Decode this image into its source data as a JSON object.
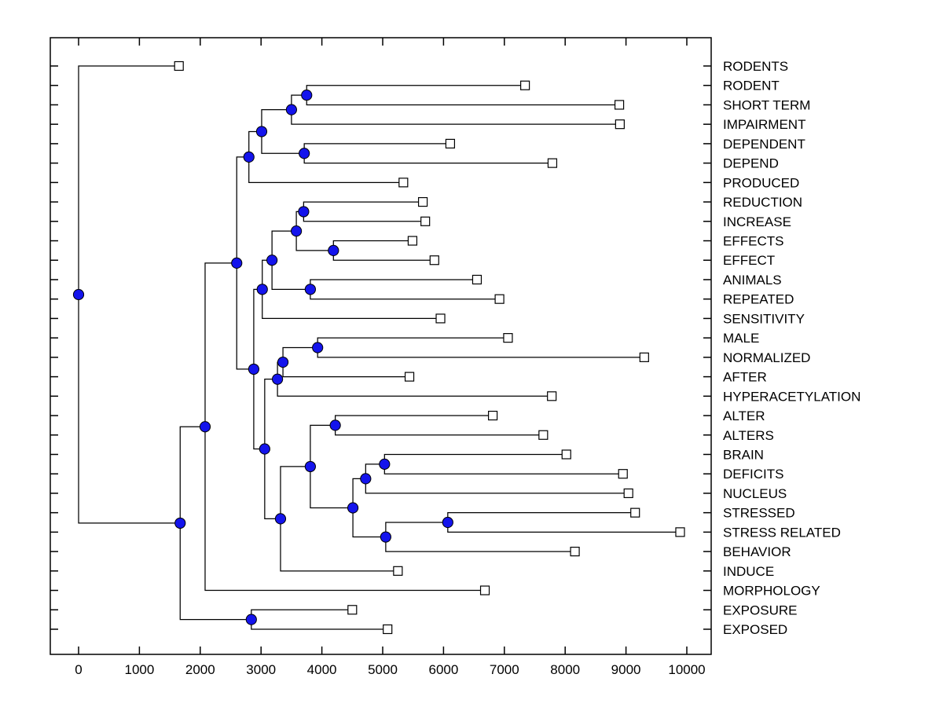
{
  "chart_data": {
    "type": "dendrogram",
    "subtype": "phylogenetic-tree-left-to-right",
    "title": "",
    "xlabel": "",
    "ylabel": "",
    "grid": false,
    "legend": null,
    "x_axis": {
      "min": 0,
      "max": 10000,
      "tick_step": 1000,
      "tick_labels": [
        "0",
        "1000",
        "2000",
        "3000",
        "4000",
        "5000",
        "6000",
        "7000",
        "8000",
        "9000",
        "10000"
      ]
    },
    "marker_styles": {
      "internal_node": "filled blue circle",
      "leaf_node": "open white square"
    },
    "colors": {
      "branch_line": "#000000",
      "internal_node_fill": "#1414EC",
      "internal_node_edge": "#000000",
      "leaf_marker_fill": "#FFFFFF",
      "leaf_marker_edge": "#000000",
      "axis_box": "#000000"
    },
    "leaf_order": [
      "RODENTS",
      "RODENT",
      "SHORT TERM",
      "IMPAIRMENT",
      "DEPENDENT",
      "DEPEND",
      "PRODUCED",
      "REDUCTION",
      "INCREASE",
      "EFFECTS",
      "EFFECT",
      "ANIMALS",
      "REPEATED",
      "SENSITIVITY",
      "MALE",
      "NORMALIZED",
      "AFTER",
      "HYPERACETYLATION",
      "ALTER",
      "ALTERS",
      "BRAIN",
      "DEFICITS",
      "NUCLEUS",
      "STRESSED",
      "STRESS RELATED",
      "BEHAVIOR",
      "INDUCE",
      "MORPHOLOGY",
      "EXPOSURE",
      "EXPOSED"
    ],
    "leaf_values": [
      1650,
      7340,
      8890,
      8900,
      6110,
      7790,
      5340,
      5660,
      5700,
      5490,
      5850,
      6550,
      6920,
      5950,
      7060,
      9300,
      5440,
      7780,
      6810,
      7640,
      8020,
      8950,
      9040,
      9150,
      9890,
      8160,
      5250,
      6680,
      4500,
      5080
    ],
    "tree": {
      "v": 0,
      "c": [
        {
          "leaf": "RODENTS",
          "v": 1650
        },
        {
          "v": 1670,
          "c": [
            {
              "v": 2080,
              "c": [
                {
                  "v": 2600,
                  "c": [
                    {
                      "v": 2800,
                      "c": [
                        {
                          "v": 3010,
                          "c": [
                            {
                              "v": 3500,
                              "c": [
                                {
                                  "v": 3750,
                                  "c": [
                                    {
                                      "leaf": "RODENT",
                                      "v": 7340
                                    },
                                    {
                                      "leaf": "SHORT TERM",
                                      "v": 8890
                                    }
                                  ]
                                },
                                {
                                  "leaf": "IMPAIRMENT",
                                  "v": 8900
                                }
                              ]
                            },
                            {
                              "v": 3710,
                              "c": [
                                {
                                  "leaf": "DEPENDENT",
                                  "v": 6110
                                },
                                {
                                  "leaf": "DEPEND",
                                  "v": 7790
                                }
                              ]
                            }
                          ]
                        },
                        {
                          "leaf": "PRODUCED",
                          "v": 5340
                        }
                      ]
                    },
                    {
                      "v": 2880,
                      "c": [
                        {
                          "v": 3020,
                          "c": [
                            {
                              "v": 3180,
                              "c": [
                                {
                                  "v": 3580,
                                  "c": [
                                    {
                                      "v": 3700,
                                      "c": [
                                        {
                                          "leaf": "REDUCTION",
                                          "v": 5660
                                        },
                                        {
                                          "leaf": "INCREASE",
                                          "v": 5700
                                        }
                                      ]
                                    },
                                    {
                                      "v": 4190,
                                      "c": [
                                        {
                                          "leaf": "EFFECTS",
                                          "v": 5490
                                        },
                                        {
                                          "leaf": "EFFECT",
                                          "v": 5850
                                        }
                                      ]
                                    }
                                  ]
                                },
                                {
                                  "v": 3810,
                                  "c": [
                                    {
                                      "leaf": "ANIMALS",
                                      "v": 6550
                                    },
                                    {
                                      "leaf": "REPEATED",
                                      "v": 6920
                                    }
                                  ]
                                }
                              ]
                            },
                            {
                              "leaf": "SENSITIVITY",
                              "v": 5950
                            }
                          ]
                        },
                        {
                          "v": 3060,
                          "c": [
                            {
                              "v": 3270,
                              "c": [
                                {
                                  "v": 3360,
                                  "c": [
                                    {
                                      "v": 3930,
                                      "c": [
                                        {
                                          "leaf": "MALE",
                                          "v": 7060
                                        },
                                        {
                                          "leaf": "NORMALIZED",
                                          "v": 9300
                                        }
                                      ]
                                    },
                                    {
                                      "leaf": "AFTER",
                                      "v": 5440
                                    }
                                  ]
                                },
                                {
                                  "leaf": "HYPERACETYLATION",
                                  "v": 7780
                                }
                              ]
                            },
                            {
                              "v": 3320,
                              "c": [
                                {
                                  "v": 3810,
                                  "c": [
                                    {
                                      "v": 4220,
                                      "c": [
                                        {
                                          "leaf": "ALTER",
                                          "v": 6810
                                        },
                                        {
                                          "leaf": "ALTERS",
                                          "v": 7640
                                        }
                                      ]
                                    },
                                    {
                                      "v": 4510,
                                      "c": [
                                        {
                                          "v": 4720,
                                          "c": [
                                            {
                                              "v": 5030,
                                              "c": [
                                                {
                                                  "leaf": "BRAIN",
                                                  "v": 8020
                                                },
                                                {
                                                  "leaf": "DEFICITS",
                                                  "v": 8950
                                                }
                                              ]
                                            },
                                            {
                                              "leaf": "NUCLEUS",
                                              "v": 9040
                                            }
                                          ]
                                        },
                                        {
                                          "v": 5050,
                                          "c": [
                                            {
                                              "v": 6070,
                                              "c": [
                                                {
                                                  "leaf": "STRESSED",
                                                  "v": 9150
                                                },
                                                {
                                                  "leaf": "STRESS RELATED",
                                                  "v": 9890
                                                }
                                              ]
                                            },
                                            {
                                              "leaf": "BEHAVIOR",
                                              "v": 8160
                                            }
                                          ]
                                        }
                                      ]
                                    }
                                  ]
                                },
                                {
                                  "leaf": "INDUCE",
                                  "v": 5250
                                }
                              ]
                            }
                          ]
                        }
                      ]
                    }
                  ]
                },
                {
                  "leaf": "MORPHOLOGY",
                  "v": 6680
                }
              ]
            },
            {
              "v": 2840,
              "c": [
                {
                  "leaf": "EXPOSURE",
                  "v": 4500
                },
                {
                  "leaf": "EXPOSED",
                  "v": 5080
                }
              ]
            }
          ]
        }
      ]
    }
  }
}
